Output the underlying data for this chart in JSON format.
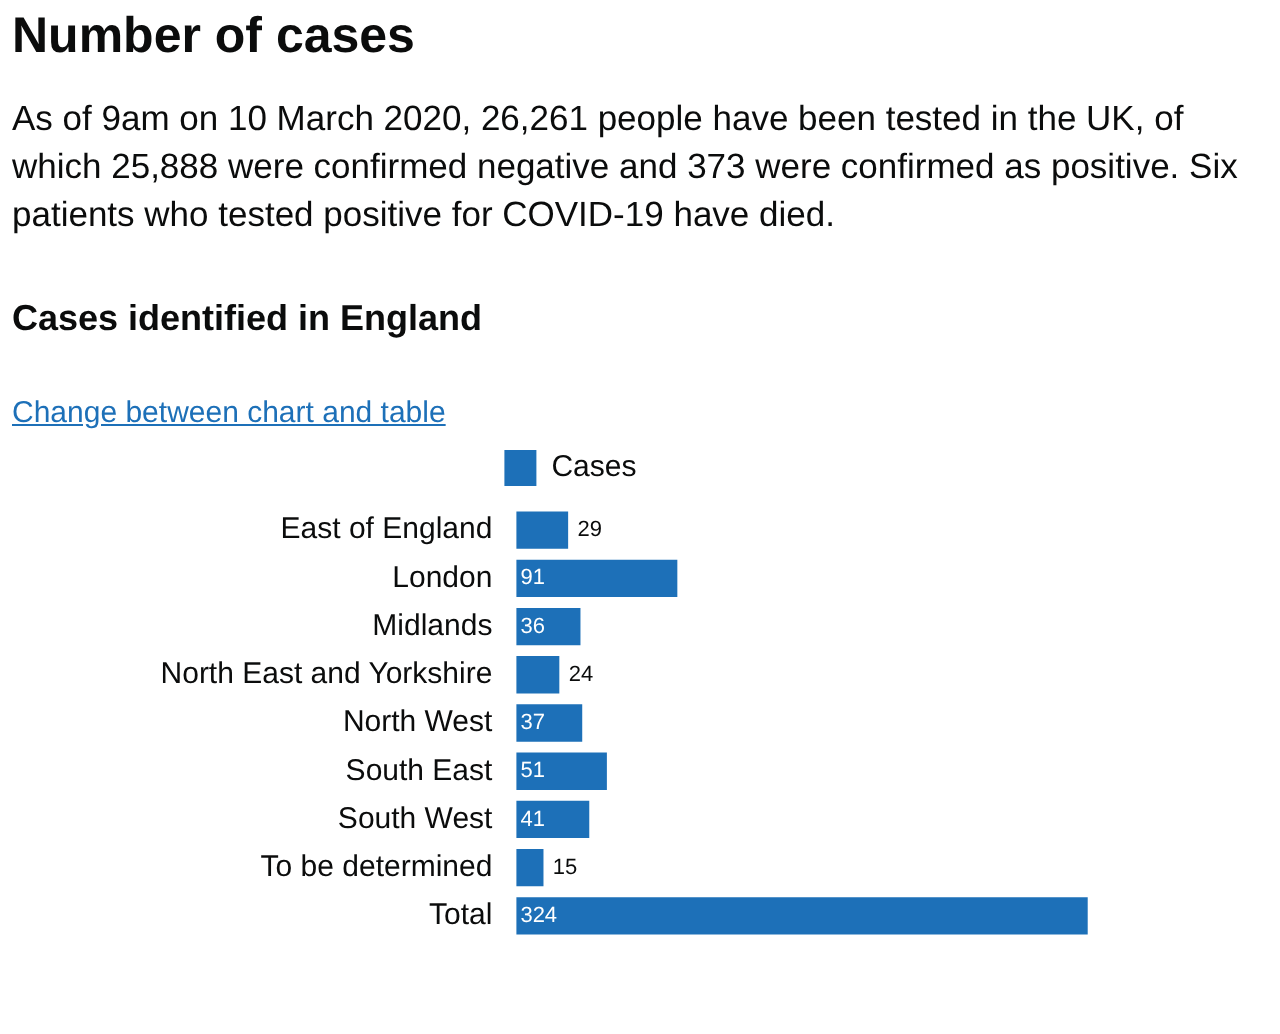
{
  "chart_data": {
    "type": "bar",
    "orientation": "horizontal",
    "title": "Number of cases",
    "subtitle": "As of 9am on 10 March 2020, 26,261 people have been tested in the UK, of which 25,888 were confirmed negative and 373 were confirmed as positive. Six patients who tested positive for COVID-19 have died.",
    "annotations": [
      "Cases identified in England",
      "Change between chart and table"
    ],
    "categories": [
      "East of England",
      "London",
      "Midlands",
      "North East and Yorkshire",
      "North West",
      "South East",
      "South West",
      "To be determined",
      "Total"
    ],
    "series": [
      {
        "name": "Cases",
        "color": "#1d70b8",
        "values": [
          29,
          91,
          36,
          24,
          37,
          51,
          41,
          15,
          324
        ]
      }
    ],
    "data_labels": true,
    "legend": "top"
  }
}
